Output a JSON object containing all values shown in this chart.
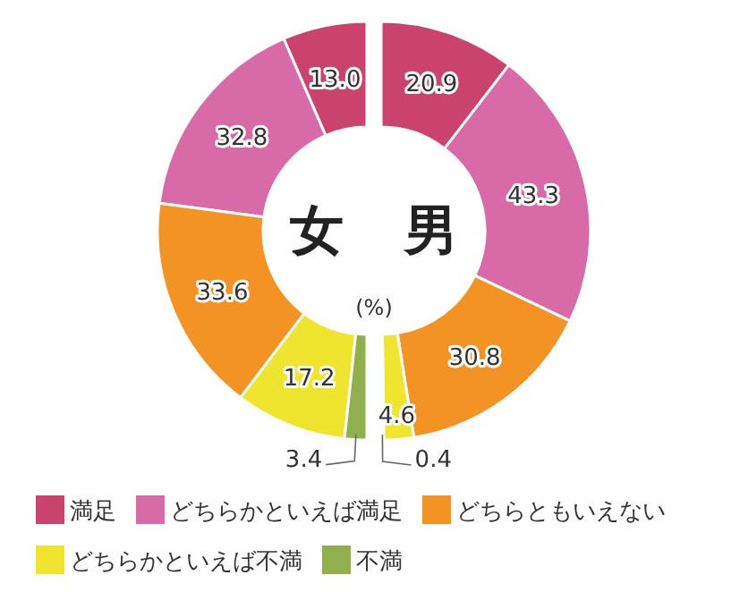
{
  "chart_data": [
    {
      "type": "donut",
      "title": "女",
      "categories": [
        "満足",
        "どちらかといえば満足",
        "どちらともいえない",
        "どちらかといえば不満",
        "不満"
      ],
      "colors": [
        "#c9436e",
        "#d96aa8",
        "#f39323",
        "#f0e52e",
        "#8fb04d"
      ],
      "values": [
        13.0,
        32.8,
        33.6,
        17.2,
        3.4
      ],
      "value_labels": [
        "13.0",
        "32.8",
        "33.6",
        "17.2",
        "3.4"
      ],
      "annotations": [
        "(%)"
      ],
      "legend": "bottom"
    },
    {
      "type": "donut",
      "title": "男",
      "categories": [
        null,
        null,
        null,
        null,
        null
      ],
      "colors": [
        "#c9436e",
        "#d96aa8",
        "#f39323",
        "#f0e52e",
        "#8fb04d"
      ],
      "values": [
        20.9,
        43.3,
        30.8,
        4.6,
        0.4
      ],
      "value_labels": [
        "20.9",
        "43.3",
        "30.8",
        "4.6",
        "0.4"
      ]
    }
  ]
}
